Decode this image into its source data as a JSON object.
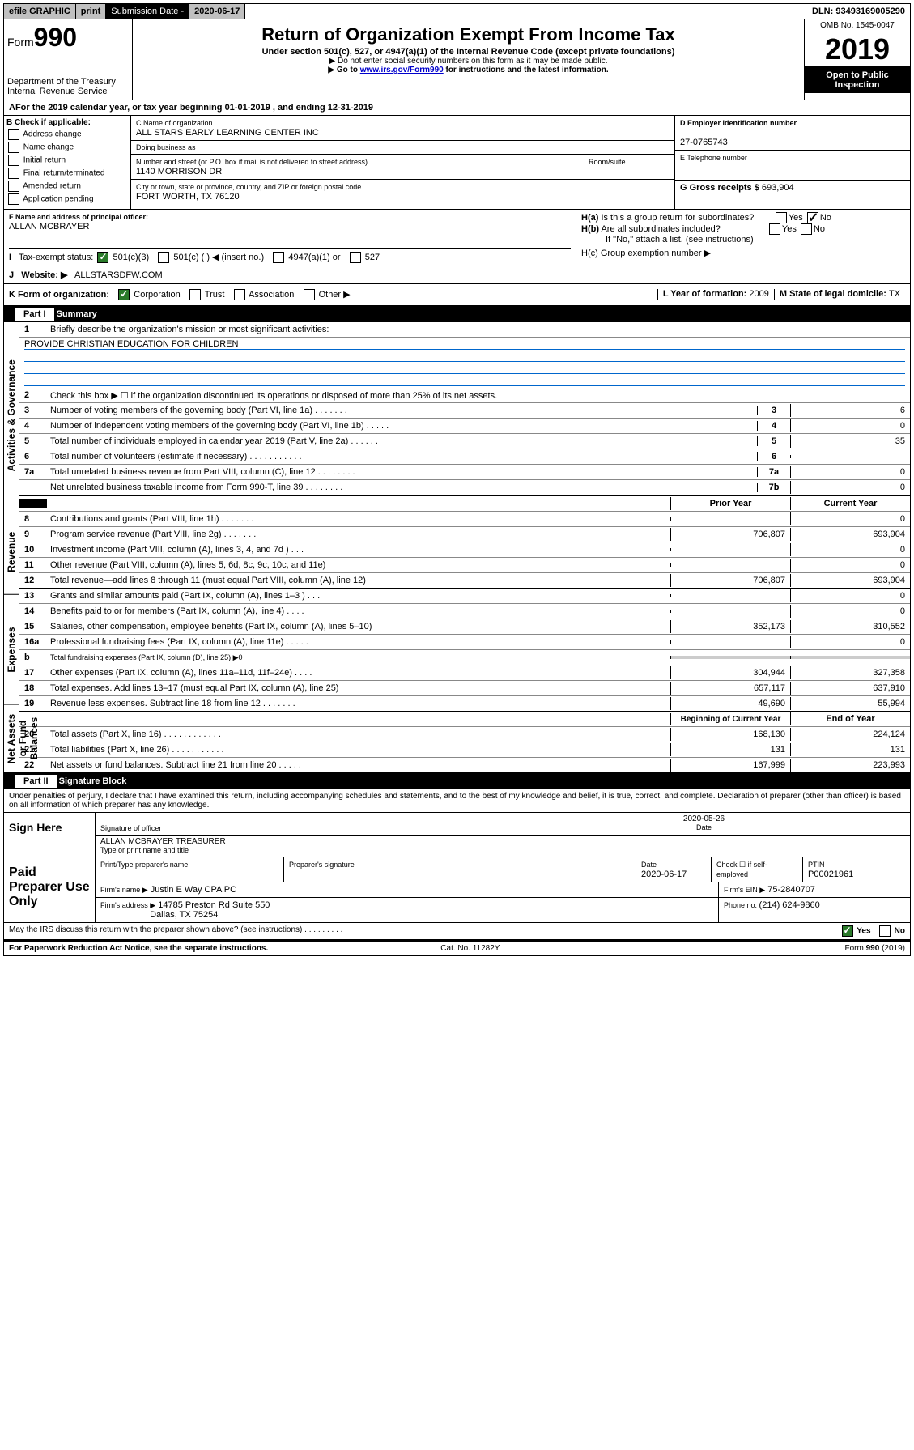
{
  "topbar": {
    "efile": "efile GRAPHIC",
    "print": "print",
    "subdate_label": "Submission Date - ",
    "subdate": "2020-06-17",
    "dln": "DLN: 93493169005290"
  },
  "header": {
    "form_prefix": "Form",
    "form_num": "990",
    "dept": "Department of the Treasury",
    "irs": "Internal Revenue Service",
    "title": "Return of Organization Exempt From Income Tax",
    "subtitle": "Under section 501(c), 527, or 4947(a)(1) of the Internal Revenue Code (except private foundations)",
    "note1": "▶ Do not enter social security numbers on this form as it may be made public.",
    "note2_pre": "▶ Go to ",
    "note2_link": "www.irs.gov/Form990",
    "note2_post": " for instructions and the latest information.",
    "omb": "OMB No. 1545-0047",
    "year": "2019",
    "inspection": "Open to Public Inspection"
  },
  "period": {
    "text_pre": "For the 2019 calendar year, or tax year beginning ",
    "begin": "01-01-2019",
    "text_mid": " , and ending ",
    "end": "12-31-2019"
  },
  "section_b": {
    "header": "B Check if applicable:",
    "opts": [
      "Address change",
      "Name change",
      "Initial return",
      "Final return/terminated",
      "Amended return",
      "Application pending"
    ]
  },
  "section_c": {
    "name_label": "C Name of organization",
    "org_name": "ALL STARS EARLY LEARNING CENTER INC",
    "dba_label": "Doing business as",
    "addr_label": "Number and street (or P.O. box if mail is not delivered to street address)",
    "room_label": "Room/suite",
    "addr": "1140 MORRISON DR",
    "city_label": "City or town, state or province, country, and ZIP or foreign postal code",
    "city": "FORT WORTH, TX  76120"
  },
  "section_d": {
    "label": "D Employer identification number",
    "ein": "27-0765743"
  },
  "section_e": {
    "label": "E Telephone number"
  },
  "section_g": {
    "label": "G Gross receipts $ ",
    "val": "693,904"
  },
  "section_f": {
    "label": "F  Name and address of principal officer:",
    "name": "ALLAN MCBRAYER"
  },
  "section_h": {
    "ha": "H(a)  Is this a group return for subordinates?",
    "hb": "H(b)  Are all subordinates included?",
    "hb_note": "If \"No,\" attach a list. (see instructions)",
    "hc": "H(c)  Group exemption number ▶"
  },
  "section_i": {
    "label": "Tax-exempt status:",
    "opt1": "501(c)(3)",
    "opt2": "501(c) (   ) ◀ (insert no.)",
    "opt3": "4947(a)(1) or",
    "opt4": "527"
  },
  "section_j": {
    "label": "Website: ▶",
    "val": "ALLSTARSDFW.COM"
  },
  "section_k": {
    "label": "K Form of organization:",
    "opts": [
      "Corporation",
      "Trust",
      "Association",
      "Other ▶"
    ]
  },
  "section_l": {
    "label": "L Year of formation: ",
    "val": "2009"
  },
  "section_m": {
    "label": "M State of legal domicile: ",
    "val": "TX"
  },
  "part1": {
    "title": "Part I",
    "subtitle": "Summary",
    "vert_labels": [
      "Activities & Governance",
      "Revenue",
      "Expenses",
      "Net Assets or Fund Balances"
    ],
    "line1_label": "Briefly describe the organization's mission or most significant activities:",
    "mission": "PROVIDE CHRISTIAN EDUCATION FOR CHILDREN",
    "line2": "Check this box ▶ ☐  if the organization discontinued its operations or disposed of more than 25% of its net assets.",
    "rows_ag": [
      {
        "n": "3",
        "label": "Number of voting members of the governing body (Part VI, line 1a)  .    .    .    .    .    .    .",
        "c": "3",
        "v": "6"
      },
      {
        "n": "4",
        "label": "Number of independent voting members of the governing body (Part VI, line 1b)  .    .    .    .    .",
        "c": "4",
        "v": "0"
      },
      {
        "n": "5",
        "label": "Total number of individuals employed in calendar year 2019 (Part V, line 2a)  .    .    .    .    .    .",
        "c": "5",
        "v": "35"
      },
      {
        "n": "6",
        "label": "Total number of volunteers (estimate if necessary)  .    .    .    .    .    .    .    .    .    .    .",
        "c": "6",
        "v": ""
      },
      {
        "n": "7a",
        "label": "Total unrelated business revenue from Part VIII, column (C), line 12  .    .    .    .    .    .    .    .",
        "c": "7a",
        "v": "0"
      },
      {
        "n": "",
        "label": "Net unrelated business taxable income from Form 990-T, line 39  .    .    .    .    .    .    .    .",
        "c": "7b",
        "v": "0"
      }
    ],
    "prior_year": "Prior Year",
    "current_year": "Current Year",
    "rows_rev": [
      {
        "n": "8",
        "label": "Contributions and grants (Part VIII, line 1h)  .    .    .    .    .    .    .",
        "py": "",
        "cy": "0"
      },
      {
        "n": "9",
        "label": "Program service revenue (Part VIII, line 2g)  .    .    .    .    .    .    .",
        "py": "706,807",
        "cy": "693,904"
      },
      {
        "n": "10",
        "label": "Investment income (Part VIII, column (A), lines 3, 4, and 7d )  .    .    .",
        "py": "",
        "cy": "0"
      },
      {
        "n": "11",
        "label": "Other revenue (Part VIII, column (A), lines 5, 6d, 8c, 9c, 10c, and 11e)",
        "py": "",
        "cy": "0"
      },
      {
        "n": "12",
        "label": "Total revenue—add lines 8 through 11 (must equal Part VIII, column (A), line 12)",
        "py": "706,807",
        "cy": "693,904"
      }
    ],
    "rows_exp": [
      {
        "n": "13",
        "label": "Grants and similar amounts paid (Part IX, column (A), lines 1–3 )  .    .    .",
        "py": "",
        "cy": "0"
      },
      {
        "n": "14",
        "label": "Benefits paid to or for members (Part IX, column (A), line 4)  .    .    .    .",
        "py": "",
        "cy": "0"
      },
      {
        "n": "15",
        "label": "Salaries, other compensation, employee benefits (Part IX, column (A), lines 5–10)",
        "py": "352,173",
        "cy": "310,552"
      },
      {
        "n": "16a",
        "label": "Professional fundraising fees (Part IX, column (A), line 11e)  .    .    .    .    .",
        "py": "",
        "cy": "0"
      },
      {
        "n": "b",
        "label": "Total fundraising expenses (Part IX, column (D), line 25) ▶0",
        "py": null,
        "cy": null
      },
      {
        "n": "17",
        "label": "Other expenses (Part IX, column (A), lines 11a–11d, 11f–24e)  .    .    .    .",
        "py": "304,944",
        "cy": "327,358"
      },
      {
        "n": "18",
        "label": "Total expenses. Add lines 13–17 (must equal Part IX, column (A), line 25)",
        "py": "657,117",
        "cy": "637,910"
      },
      {
        "n": "19",
        "label": "Revenue less expenses. Subtract line 18 from line 12  .    .    .    .    .    .    .",
        "py": "49,690",
        "cy": "55,994"
      }
    ],
    "begin_year": "Beginning of Current Year",
    "end_year": "End of Year",
    "rows_na": [
      {
        "n": "20",
        "label": "Total assets (Part X, line 16)  .    .    .    .    .    .    .    .    .    .    .    .",
        "py": "168,130",
        "cy": "224,124"
      },
      {
        "n": "21",
        "label": "Total liabilities (Part X, line 26)  .    .    .    .    .    .    .    .    .    .    .",
        "py": "131",
        "cy": "131"
      },
      {
        "n": "22",
        "label": "Net assets or fund balances. Subtract line 21 from line 20  .    .    .    .    .",
        "py": "167,999",
        "cy": "223,993"
      }
    ]
  },
  "part2": {
    "title": "Part II",
    "subtitle": "Signature Block",
    "decl": "Under penalties of perjury, I declare that I have examined this return, including accompanying schedules and statements, and to the best of my knowledge and belief, it is true, correct, and complete. Declaration of preparer (other than officer) is based on all information of which preparer has any knowledge.",
    "sign_here": "Sign Here",
    "sig_officer": "Signature of officer",
    "sig_date": "2020-05-26",
    "date_label": "Date",
    "officer_name": "ALLAN MCBRAYER  TREASURER",
    "type_name": "Type or print name and title"
  },
  "paid": {
    "title": "Paid Preparer Use Only",
    "prep_name_label": "Print/Type preparer's name",
    "prep_sig_label": "Preparer's signature",
    "date_label": "Date",
    "date": "2020-06-17",
    "check_label": "Check ☐ if self-employed",
    "ptin_label": "PTIN",
    "ptin": "P00021961",
    "firm_name_label": "Firm's name    ▶",
    "firm_name": "Justin E Way CPA PC",
    "firm_ein_label": "Firm's EIN ▶",
    "firm_ein": "75-2840707",
    "firm_addr_label": "Firm's address ▶",
    "firm_addr1": "14785 Preston Rd Suite 550",
    "firm_addr2": "Dallas, TX  75254",
    "phone_label": "Phone no. ",
    "phone": "(214) 624-9860"
  },
  "footer": {
    "discuss": "May the IRS discuss this return with the preparer shown above? (see instructions)   .    .    .    .    .    .    .    .    .    .",
    "pra": "For Paperwork Reduction Act Notice, see the separate instructions.",
    "cat": "Cat. No. 11282Y",
    "form": "Form 990 (2019)"
  }
}
